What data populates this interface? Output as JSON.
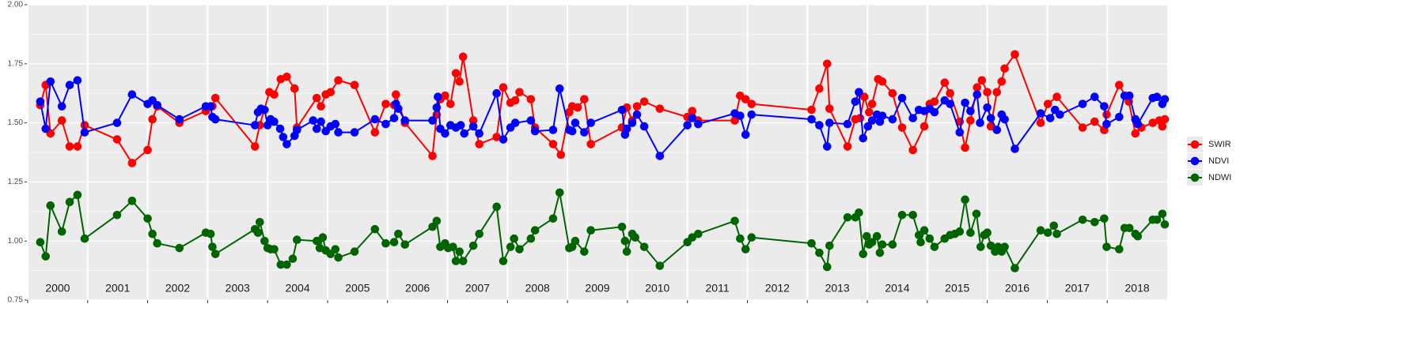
{
  "chart_data": {
    "type": "line",
    "legend_position": "right",
    "grid": true,
    "xlim": [
      2000,
      2019
    ],
    "ylim": [
      0.75,
      2.0
    ],
    "xticks": [
      2000,
      2001,
      2002,
      2003,
      2004,
      2005,
      2006,
      2007,
      2008,
      2009,
      2010,
      2011,
      2012,
      2013,
      2014,
      2015,
      2016,
      2017,
      2018
    ],
    "yticks": [
      {
        "value": 0.75,
        "label": "0.75"
      },
      {
        "value": 1,
        "label": "1.00"
      },
      {
        "value": 1.25,
        "label": "1.25"
      },
      {
        "value": 1.5,
        "label": "1.50"
      },
      {
        "value": 1.75,
        "label": "1.75"
      },
      {
        "value": 2,
        "label": "2.00"
      }
    ],
    "series": [
      {
        "name": "SWIR",
        "color": "#ff0000",
        "x": [
          2000.21,
          2000.3,
          2000.38,
          2000.57,
          2000.7,
          2000.83,
          2000.95,
          2001.49,
          2001.74,
          2002.0,
          2002.08,
          2002.16,
          2002.53,
          2002.97,
          2003.08,
          2003.13,
          2003.79,
          2003.87,
          2004.03,
          2004.11,
          2004.22,
          2004.32,
          2004.45,
          2004.49,
          2004.82,
          2004.89,
          2004.97,
          2005.05,
          2005.18,
          2005.45,
          2005.79,
          2005.97,
          2006.11,
          2006.14,
          2006.29,
          2006.75,
          2006.82,
          2006.88,
          2006.96,
          2007.05,
          2007.14,
          2007.2,
          2007.26,
          2007.43,
          2007.53,
          2007.82,
          2007.93,
          2008.05,
          2008.13,
          2008.2,
          2008.39,
          2008.46,
          2008.76,
          2008.89,
          2009.03,
          2009.08,
          2009.17,
          2009.28,
          2009.39,
          2009.91,
          2009.99,
          2010.08,
          2010.16,
          2010.28,
          2010.54,
          2011.0,
          2011.08,
          2011.18,
          2011.79,
          2011.88,
          2011.97,
          2012.07,
          2013.07,
          2013.2,
          2013.33,
          2013.37,
          2013.67,
          2013.8,
          2013.88,
          2013.95,
          2014.03,
          2014.08,
          2014.18,
          2014.25,
          2014.42,
          2014.58,
          2014.76,
          2014.95,
          2015.04,
          2015.12,
          2015.29,
          2015.38,
          2015.54,
          2015.63,
          2015.72,
          2015.83,
          2015.91,
          2016.0,
          2016.06,
          2016.16,
          2016.24,
          2016.29,
          2016.46,
          2016.89,
          2017.01,
          2017.16,
          2017.59,
          2017.79,
          2017.95,
          2017.99,
          2018.2,
          2018.36,
          2018.47,
          2018.57,
          2018.76,
          2018.87,
          2018.92,
          2018.96
        ],
        "values": [
          1.575,
          1.66,
          1.455,
          1.51,
          1.4,
          1.4,
          1.49,
          1.43,
          1.33,
          1.385,
          1.515,
          1.57,
          1.5,
          1.55,
          1.57,
          1.605,
          1.4,
          1.49,
          1.63,
          1.62,
          1.685,
          1.695,
          1.645,
          1.48,
          1.605,
          1.57,
          1.62,
          1.63,
          1.68,
          1.66,
          1.46,
          1.58,
          1.575,
          1.62,
          1.5,
          1.36,
          1.535,
          1.6,
          1.615,
          1.58,
          1.71,
          1.675,
          1.78,
          1.51,
          1.41,
          1.44,
          1.65,
          1.585,
          1.595,
          1.63,
          1.6,
          1.48,
          1.41,
          1.365,
          1.545,
          1.57,
          1.565,
          1.6,
          1.41,
          1.48,
          1.565,
          1.51,
          1.57,
          1.59,
          1.56,
          1.525,
          1.55,
          1.51,
          1.51,
          1.615,
          1.6,
          1.58,
          1.555,
          1.645,
          1.75,
          1.56,
          1.4,
          1.515,
          1.52,
          1.61,
          1.545,
          1.58,
          1.685,
          1.675,
          1.625,
          1.48,
          1.385,
          1.485,
          1.58,
          1.59,
          1.67,
          1.625,
          1.505,
          1.395,
          1.51,
          1.65,
          1.68,
          1.63,
          1.485,
          1.63,
          1.675,
          1.73,
          1.79,
          1.5,
          1.58,
          1.61,
          1.48,
          1.505,
          1.47,
          1.535,
          1.66,
          1.59,
          1.455,
          1.48,
          1.5,
          1.51,
          1.485,
          1.515
        ]
      },
      {
        "name": "NDVI",
        "color": "#0000ff",
        "x": [
          2000.21,
          2000.3,
          2000.38,
          2000.57,
          2000.7,
          2000.83,
          2000.95,
          2001.49,
          2001.74,
          2002.0,
          2002.08,
          2002.16,
          2002.53,
          2002.97,
          2003.05,
          2003.08,
          2003.13,
          2003.79,
          2003.84,
          2003.89,
          2003.95,
          2004.0,
          2004.05,
          2004.11,
          2004.21,
          2004.26,
          2004.32,
          2004.45,
          2004.49,
          2004.76,
          2004.82,
          2004.89,
          2004.97,
          2005.05,
          2005.13,
          2005.18,
          2005.45,
          2005.79,
          2005.97,
          2006.11,
          2006.14,
          2006.18,
          2006.29,
          2006.75,
          2006.82,
          2006.84,
          2006.88,
          2006.96,
          2007.05,
          2007.14,
          2007.22,
          2007.28,
          2007.43,
          2007.53,
          2007.82,
          2007.93,
          2008.05,
          2008.13,
          2008.39,
          2008.46,
          2008.76,
          2008.87,
          2009.03,
          2009.08,
          2009.13,
          2009.28,
          2009.39,
          2009.91,
          2009.96,
          2009.99,
          2010.08,
          2010.16,
          2010.28,
          2010.54,
          2011.0,
          2011.08,
          2011.18,
          2011.79,
          2011.88,
          2011.97,
          2012.07,
          2013.07,
          2013.2,
          2013.33,
          2013.37,
          2013.67,
          2013.8,
          2013.86,
          2013.93,
          2014.01,
          2014.08,
          2014.16,
          2014.21,
          2014.25,
          2014.42,
          2014.58,
          2014.76,
          2014.86,
          2014.95,
          2015.04,
          2015.12,
          2015.29,
          2015.38,
          2015.54,
          2015.63,
          2015.72,
          2015.83,
          2015.88,
          2016.0,
          2016.06,
          2016.16,
          2016.24,
          2016.29,
          2016.46,
          2016.89,
          2017.05,
          2017.13,
          2017.21,
          2017.59,
          2017.79,
          2017.95,
          2017.99,
          2018.2,
          2018.29,
          2018.37,
          2018.47,
          2018.51,
          2018.76,
          2018.83,
          2018.92,
          2018.96
        ],
        "values": [
          1.59,
          1.475,
          1.675,
          1.57,
          1.66,
          1.68,
          1.46,
          1.5,
          1.62,
          1.58,
          1.595,
          1.575,
          1.515,
          1.57,
          1.57,
          1.525,
          1.515,
          1.49,
          1.545,
          1.56,
          1.555,
          1.49,
          1.515,
          1.505,
          1.475,
          1.44,
          1.41,
          1.445,
          1.47,
          1.51,
          1.475,
          1.505,
          1.465,
          1.485,
          1.495,
          1.46,
          1.46,
          1.515,
          1.495,
          1.52,
          1.58,
          1.56,
          1.51,
          1.51,
          1.565,
          1.61,
          1.475,
          1.455,
          1.49,
          1.48,
          1.49,
          1.455,
          1.485,
          1.455,
          1.625,
          1.43,
          1.48,
          1.5,
          1.51,
          1.465,
          1.47,
          1.645,
          1.47,
          1.465,
          1.5,
          1.46,
          1.5,
          1.555,
          1.45,
          1.475,
          1.5,
          1.535,
          1.485,
          1.36,
          1.49,
          1.52,
          1.495,
          1.54,
          1.53,
          1.45,
          1.535,
          1.515,
          1.49,
          1.4,
          1.5,
          1.495,
          1.59,
          1.63,
          1.435,
          1.485,
          1.51,
          1.535,
          1.505,
          1.53,
          1.515,
          1.605,
          1.52,
          1.555,
          1.55,
          1.56,
          1.545,
          1.595,
          1.58,
          1.46,
          1.585,
          1.55,
          1.62,
          1.5,
          1.565,
          1.52,
          1.47,
          1.535,
          1.515,
          1.39,
          1.54,
          1.52,
          1.555,
          1.535,
          1.58,
          1.61,
          1.57,
          1.495,
          1.525,
          1.615,
          1.615,
          1.515,
          1.495,
          1.605,
          1.61,
          1.58,
          1.6
        ]
      },
      {
        "name": "NDWI",
        "color": "#006400",
        "x": [
          2000.21,
          2000.3,
          2000.38,
          2000.57,
          2000.7,
          2000.83,
          2000.95,
          2001.49,
          2001.74,
          2002.0,
          2002.08,
          2002.16,
          2002.53,
          2002.97,
          2003.05,
          2003.08,
          2003.13,
          2003.79,
          2003.84,
          2003.87,
          2003.95,
          2004.0,
          2004.05,
          2004.11,
          2004.22,
          2004.32,
          2004.42,
          2004.49,
          2004.82,
          2004.87,
          2004.92,
          2004.97,
          2005.05,
          2005.13,
          2005.18,
          2005.45,
          2005.79,
          2005.97,
          2006.11,
          2006.18,
          2006.29,
          2006.75,
          2006.82,
          2006.88,
          2006.96,
          2007.01,
          2007.09,
          2007.14,
          2007.2,
          2007.26,
          2007.43,
          2007.53,
          2007.82,
          2007.93,
          2008.05,
          2008.11,
          2008.2,
          2008.39,
          2008.46,
          2008.76,
          2008.87,
          2009.03,
          2009.08,
          2009.13,
          2009.28,
          2009.39,
          2009.91,
          2009.96,
          2009.99,
          2010.08,
          2010.13,
          2010.28,
          2010.54,
          2011.0,
          2011.08,
          2011.18,
          2011.79,
          2011.88,
          2011.97,
          2012.07,
          2013.07,
          2013.2,
          2013.33,
          2013.37,
          2013.67,
          2013.8,
          2013.86,
          2013.93,
          2013.99,
          2014.03,
          2014.08,
          2014.16,
          2014.21,
          2014.25,
          2014.42,
          2014.58,
          2014.76,
          2014.86,
          2014.89,
          2014.95,
          2015.04,
          2015.12,
          2015.29,
          2015.38,
          2015.46,
          2015.54,
          2015.63,
          2015.72,
          2015.82,
          2015.89,
          2015.95,
          2016.0,
          2016.06,
          2016.13,
          2016.18,
          2016.24,
          2016.29,
          2016.46,
          2016.89,
          2017.01,
          2017.11,
          2017.16,
          2017.59,
          2017.79,
          2017.95,
          2017.99,
          2018.2,
          2018.29,
          2018.37,
          2018.47,
          2018.51,
          2018.76,
          2018.83,
          2018.92,
          2018.96
        ],
        "values": [
          0.995,
          0.935,
          1.15,
          1.04,
          1.165,
          1.195,
          1.01,
          1.11,
          1.17,
          1.095,
          1.03,
          0.99,
          0.97,
          1.035,
          1.03,
          0.975,
          0.945,
          1.05,
          1.035,
          1.08,
          1.0,
          0.97,
          0.965,
          0.965,
          0.9,
          0.9,
          0.925,
          1.005,
          1.0,
          0.97,
          1.015,
          0.96,
          0.945,
          0.965,
          0.93,
          0.955,
          1.05,
          0.99,
          0.995,
          1.03,
          0.985,
          1.06,
          1.085,
          0.975,
          0.99,
          0.97,
          0.975,
          0.915,
          0.955,
          0.915,
          0.98,
          1.03,
          1.145,
          0.915,
          0.975,
          1.01,
          0.965,
          1.01,
          1.045,
          1.095,
          1.205,
          0.97,
          0.975,
          1.0,
          0.955,
          1.045,
          1.06,
          1.0,
          0.955,
          1.03,
          1.015,
          0.975,
          0.895,
          0.995,
          1.015,
          1.03,
          1.085,
          1.01,
          0.965,
          1.015,
          0.99,
          0.95,
          0.89,
          0.98,
          1.1,
          1.1,
          1.12,
          0.945,
          1.02,
          0.985,
          0.995,
          1.02,
          0.95,
          0.985,
          0.985,
          1.11,
          1.11,
          1.025,
          0.995,
          1.045,
          1.01,
          0.975,
          1.01,
          1.025,
          1.03,
          1.04,
          1.175,
          1.035,
          1.115,
          0.975,
          1.025,
          1.035,
          0.98,
          0.955,
          0.975,
          0.955,
          0.975,
          0.885,
          1.045,
          1.035,
          1.065,
          1.03,
          1.09,
          1.08,
          1.095,
          0.975,
          0.965,
          1.055,
          1.055,
          1.03,
          1.02,
          1.09,
          1.09,
          1.115,
          1.07
        ]
      }
    ]
  }
}
